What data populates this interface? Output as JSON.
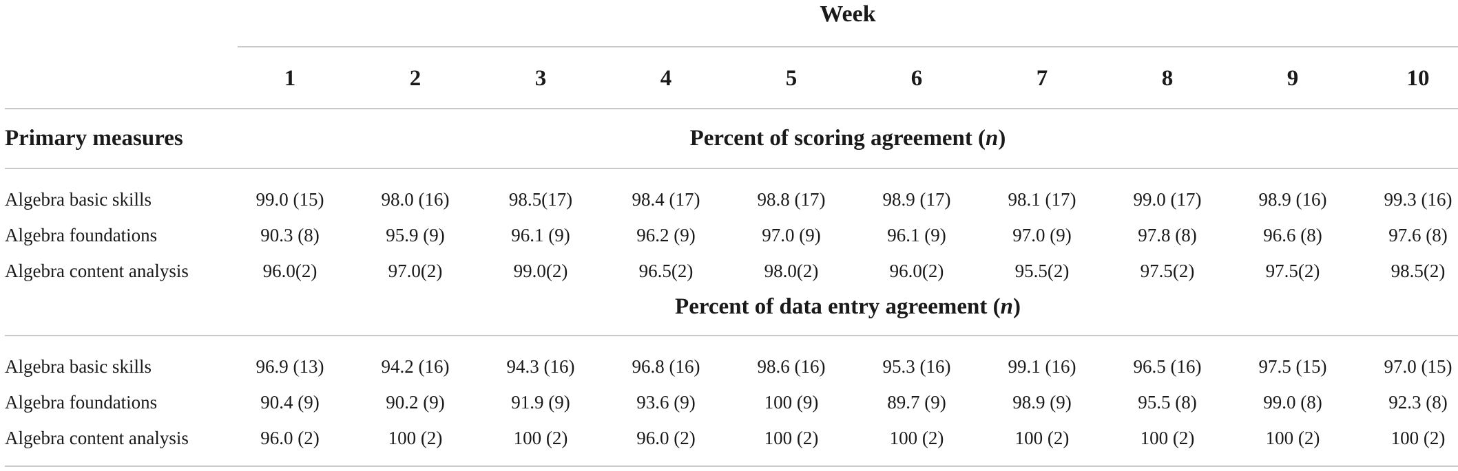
{
  "header": {
    "week_label": "Week",
    "weeks": [
      "1",
      "2",
      "3",
      "4",
      "5",
      "6",
      "7",
      "8",
      "9",
      "10"
    ]
  },
  "primary_measures_label": "Primary measures",
  "sections": [
    {
      "title": "Percent of scoring agreement (",
      "title_n": "n",
      "title_close": ")",
      "rows": [
        {
          "label": "Algebra basic skills",
          "values": [
            "99.0 (15)",
            "98.0 (16)",
            "98.5(17)",
            "98.4 (17)",
            "98.8 (17)",
            "98.9 (17)",
            "98.1 (17)",
            "99.0 (17)",
            "98.9 (16)",
            "99.3 (16)"
          ]
        },
        {
          "label": "Algebra foundations",
          "values": [
            "90.3 (8)",
            "95.9 (9)",
            "96.1 (9)",
            "96.2 (9)",
            "97.0 (9)",
            "96.1 (9)",
            "97.0 (9)",
            "97.8 (8)",
            "96.6 (8)",
            "97.6 (8)"
          ]
        },
        {
          "label": "Algebra content analysis",
          "values": [
            "96.0(2)",
            "97.0(2)",
            "99.0(2)",
            "96.5(2)",
            "98.0(2)",
            "96.0(2)",
            "95.5(2)",
            "97.5(2)",
            "97.5(2)",
            "98.5(2)"
          ]
        }
      ]
    },
    {
      "title": "Percent of data entry agreement (",
      "title_n": "n",
      "title_close": ")",
      "rows": [
        {
          "label": "Algebra basic skills",
          "values": [
            "96.9 (13)",
            "94.2 (16)",
            "94.3 (16)",
            "96.8 (16)",
            "98.6 (16)",
            "95.3 (16)",
            "99.1 (16)",
            "96.5 (16)",
            "97.5 (15)",
            "97.0 (15)"
          ]
        },
        {
          "label": "Algebra foundations",
          "values": [
            "90.4 (9)",
            "90.2 (9)",
            "91.9 (9)",
            "93.6 (9)",
            "100 (9)",
            "89.7 (9)",
            "98.9 (9)",
            "95.5 (8)",
            "99.0 (8)",
            "92.3 (8)"
          ]
        },
        {
          "label": "Algebra content analysis",
          "values": [
            "96.0 (2)",
            "100 (2)",
            "100 (2)",
            "96.0 (2)",
            "100 (2)",
            "100 (2)",
            "100 (2)",
            "100 (2)",
            "100 (2)",
            "100 (2)"
          ]
        }
      ]
    }
  ]
}
